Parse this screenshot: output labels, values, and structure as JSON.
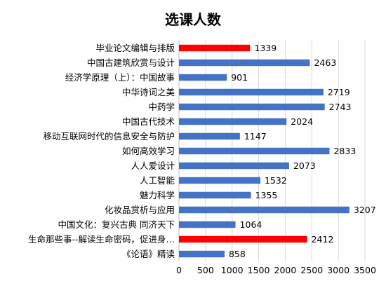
{
  "chart_data": {
    "type": "bar",
    "orientation": "horizontal",
    "title": "选课人数",
    "xlabel": "",
    "ylabel": "",
    "xlim": [
      0,
      3500
    ],
    "ticks": [
      0,
      500,
      1000,
      1500,
      2000,
      2500,
      3000,
      3500
    ],
    "grid": "vertical",
    "legend": "none",
    "colors": {
      "default": "#4472c4",
      "highlight": "#ff0000"
    },
    "categories": [
      "毕业论文编辑与排版",
      "中国古建筑欣赏与设计",
      "经济学原理（上）：中国故事",
      "中华诗词之美",
      "中药学",
      "中国古代技术",
      "移动互联网时代的信息安全与防护",
      "如何高效学习",
      "人人爱设计",
      "人工智能",
      "魅力科学",
      "化妆品赏析与应用",
      "中国文化：复兴古典 同济天下",
      "生命那些事--解读生命密码，促进身…",
      "《论语》精读"
    ],
    "values": [
      1339,
      2463,
      901,
      2719,
      2743,
      2024,
      1147,
      2833,
      2073,
      1532,
      1355,
      3207,
      1064,
      2412,
      858
    ],
    "highlighted": [
      true,
      false,
      false,
      false,
      false,
      false,
      false,
      false,
      false,
      false,
      false,
      false,
      false,
      true,
      false
    ]
  }
}
